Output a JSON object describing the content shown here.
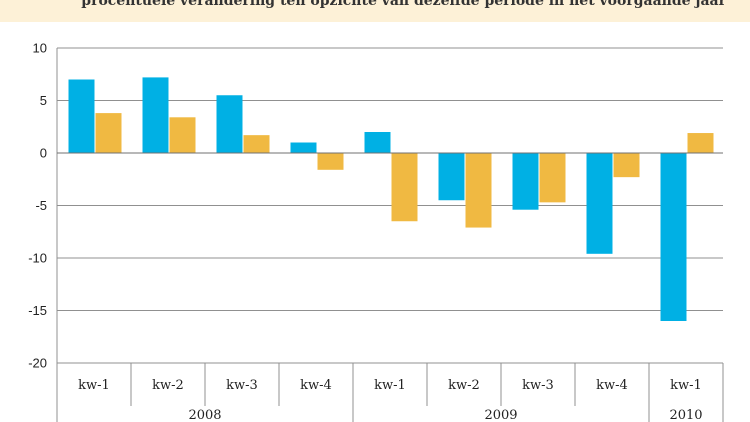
{
  "caption": "procentuele verandering ten opzichte van dezelfde periode in het voorgaande jaar",
  "colors": {
    "banner": "#fdf1d7",
    "series_a": "#00b0e4",
    "series_b": "#f0b942",
    "grid": "#909090"
  },
  "chart_data": {
    "type": "bar",
    "title": "",
    "xlabel": "",
    "ylabel": "",
    "ylim": [
      -20,
      10
    ],
    "yticks": [
      10,
      5,
      0,
      -5,
      -10,
      -15,
      -20
    ],
    "grid": true,
    "categories": [
      "kw-1",
      "kw-2",
      "kw-3",
      "kw-4",
      "kw-1",
      "kw-2",
      "kw-3",
      "kw-4",
      "kw-1"
    ],
    "groups": [
      {
        "label": "2008",
        "count": 4
      },
      {
        "label": "2009",
        "count": 4
      },
      {
        "label": "2010",
        "count": 1
      }
    ],
    "series": [
      {
        "values": [
          7.0,
          7.2,
          5.5,
          1.0,
          2.0,
          -4.5,
          -5.4,
          -9.6,
          -16.0
        ]
      },
      {
        "values": [
          3.8,
          3.4,
          1.7,
          -1.6,
          -6.5,
          -7.1,
          -4.7,
          -2.3,
          1.9
        ]
      }
    ]
  }
}
